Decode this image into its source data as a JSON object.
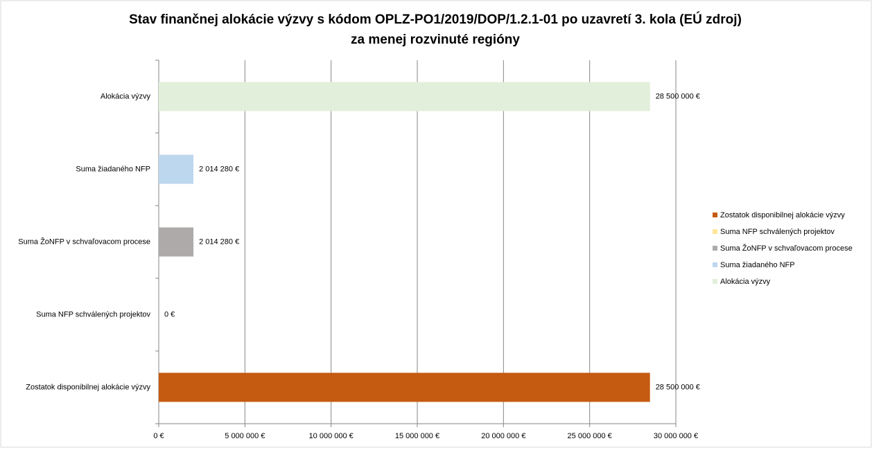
{
  "chart_data": {
    "type": "hbar",
    "title": "Stav finančnej alokácie výzvy s kódom OPLZ-PO1/2019/DOP/1.2.1-01 po uzavretí 3. kola (EÚ zdroj)",
    "subtitle": "za menej rozvinuté regióny",
    "categories": [
      "Zostatok disponibilnej alokácie výzvy",
      "Suma NFP schválených projektov",
      "Suma ŽoNFP v schvaľovacom procese",
      "Suma žiadaného NFP",
      "Alokácia výzvy"
    ],
    "values": [
      28500000,
      0,
      2014280,
      2014280,
      28500000
    ],
    "value_labels": [
      "28 500 000 €",
      "0 €",
      "2 014 280 €",
      "2 014 280 €",
      "28 500 000 €"
    ],
    "colors": [
      "#c55a11",
      "#ffe699",
      "#aeaaaa",
      "#bdd7ee",
      "#e2efda"
    ],
    "xlim": [
      0,
      30000000
    ],
    "xticks": [
      {
        "value": 0,
        "label": "0 €"
      },
      {
        "value": 5000000,
        "label": "5 000 000 €"
      },
      {
        "value": 10000000,
        "label": "10 000 000 €"
      },
      {
        "value": 15000000,
        "label": "15 000 000 €"
      },
      {
        "value": 20000000,
        "label": "20 000 000 €"
      },
      {
        "value": 25000000,
        "label": "25 000 000 €"
      },
      {
        "value": 30000000,
        "label": "30 000 000 €"
      }
    ],
    "grid": true,
    "legend": "right"
  }
}
